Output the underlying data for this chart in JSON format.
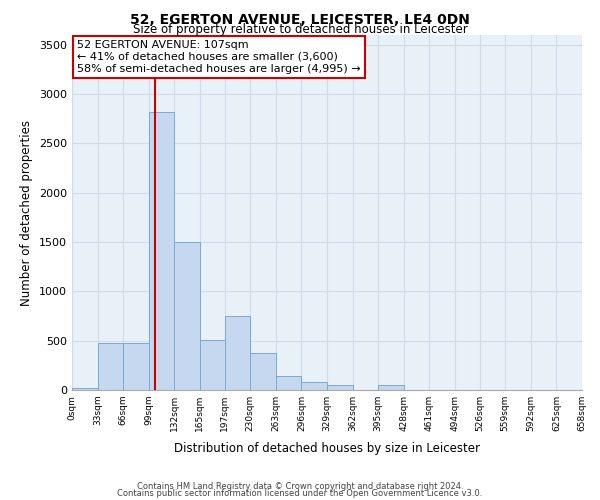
{
  "title": "52, EGERTON AVENUE, LEICESTER, LE4 0DN",
  "subtitle": "Size of property relative to detached houses in Leicester",
  "xlabel": "Distribution of detached houses by size in Leicester",
  "ylabel": "Number of detached properties",
  "bar_color": "#c5d8f0",
  "bar_edge_color": "#7aaad4",
  "background_color": "#e8f0f8",
  "grid_color": "#d0dce8",
  "annotation_text": "52 EGERTON AVENUE: 107sqm\n← 41% of detached houses are smaller (3,600)\n58% of semi-detached houses are larger (4,995) →",
  "annotation_box_edge": "#cc0000",
  "vline_x": 107,
  "vline_color": "#cc0000",
  "bin_edges": [
    0,
    33,
    66,
    99,
    132,
    165,
    197,
    230,
    263,
    296,
    329,
    362,
    395,
    428,
    461,
    494,
    526,
    559,
    592,
    625,
    658
  ],
  "bin_heights": [
    20,
    480,
    480,
    2820,
    1500,
    510,
    750,
    380,
    140,
    80,
    50,
    0,
    55,
    0,
    0,
    0,
    0,
    0,
    0,
    0
  ],
  "ylim": [
    0,
    3600
  ],
  "xlim": [
    0,
    658
  ],
  "yticks": [
    0,
    500,
    1000,
    1500,
    2000,
    2500,
    3000,
    3500
  ],
  "tick_labels": [
    "0sqm",
    "33sqm",
    "66sqm",
    "99sqm",
    "132sqm",
    "165sqm",
    "197sqm",
    "230sqm",
    "263sqm",
    "296sqm",
    "329sqm",
    "362sqm",
    "395sqm",
    "428sqm",
    "461sqm",
    "494sqm",
    "526sqm",
    "559sqm",
    "592sqm",
    "625sqm",
    "658sqm"
  ],
  "footnote1": "Contains HM Land Registry data © Crown copyright and database right 2024.",
  "footnote2": "Contains public sector information licensed under the Open Government Licence v3.0."
}
